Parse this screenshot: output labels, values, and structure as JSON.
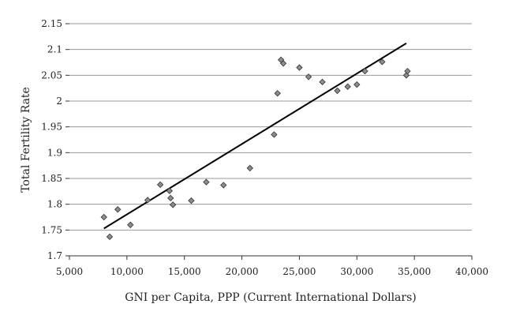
{
  "chart_data": {
    "type": "scatter",
    "title": "",
    "xlabel": "GNI per Capita, PPP (Current International Dollars)",
    "ylabel": "Total Fertility Rate",
    "xlim": [
      5000,
      40000
    ],
    "ylim": [
      1.7,
      2.15
    ],
    "x_ticks": [
      "5,000",
      "10,000",
      "15,000",
      "20,000",
      "25,000",
      "30,000",
      "35,000",
      "40,000"
    ],
    "y_ticks": [
      "1.7",
      "1.75",
      "1.8",
      "1.85",
      "1.9",
      "1.95",
      "2",
      "2.05",
      "2.1",
      "2.15"
    ],
    "grid": "horizontal",
    "points": [
      {
        "x": 8000,
        "y": 1.775
      },
      {
        "x": 8500,
        "y": 1.737
      },
      {
        "x": 9200,
        "y": 1.79
      },
      {
        "x": 10300,
        "y": 1.76
      },
      {
        "x": 11800,
        "y": 1.808
      },
      {
        "x": 12900,
        "y": 1.838
      },
      {
        "x": 13700,
        "y": 1.826
      },
      {
        "x": 13800,
        "y": 1.812
      },
      {
        "x": 14000,
        "y": 1.799
      },
      {
        "x": 15600,
        "y": 1.807
      },
      {
        "x": 16900,
        "y": 1.843
      },
      {
        "x": 18400,
        "y": 1.837
      },
      {
        "x": 20700,
        "y": 1.87
      },
      {
        "x": 22800,
        "y": 1.935
      },
      {
        "x": 23100,
        "y": 2.015
      },
      {
        "x": 23400,
        "y": 2.08
      },
      {
        "x": 23600,
        "y": 2.073
      },
      {
        "x": 25000,
        "y": 2.065
      },
      {
        "x": 25800,
        "y": 2.047
      },
      {
        "x": 27000,
        "y": 2.037
      },
      {
        "x": 28300,
        "y": 2.02
      },
      {
        "x": 29200,
        "y": 2.028
      },
      {
        "x": 30000,
        "y": 2.032
      },
      {
        "x": 30700,
        "y": 2.058
      },
      {
        "x": 32200,
        "y": 2.076
      },
      {
        "x": 34300,
        "y": 2.05
      },
      {
        "x": 34400,
        "y": 2.058
      }
    ],
    "trendline": {
      "x": [
        8000,
        34300
      ],
      "y": [
        1.753,
        2.112
      ]
    },
    "marker_color": "#8c8c8c",
    "marker_stroke": "#333333",
    "line_color": "#000000",
    "grid_color": "#999999"
  }
}
